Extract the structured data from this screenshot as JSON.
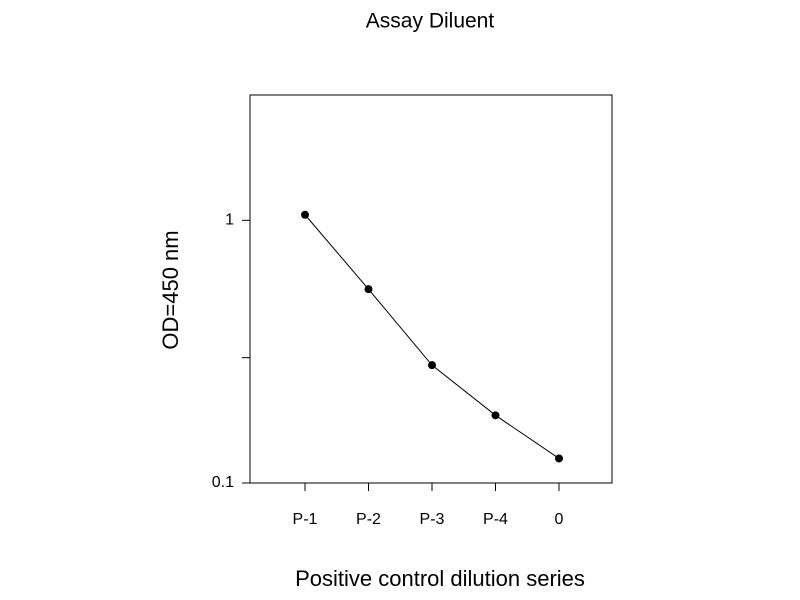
{
  "chart_data": {
    "type": "line",
    "title": "Assay Diluent",
    "x_label": "Positive control dilution series",
    "y_label": "OD=450 nm",
    "categories": [
      "P-1",
      "P-2",
      "P-3",
      "P-4",
      "0"
    ],
    "values": [
      1.05,
      0.547,
      0.281,
      0.181,
      0.124
    ],
    "color": "#000000",
    "log_scale": true,
    "ylim": [
      0.1,
      3
    ],
    "yticks": [
      0.1,
      1
    ],
    "yticks_minor": [
      0.3
    ],
    "grid": false
  }
}
